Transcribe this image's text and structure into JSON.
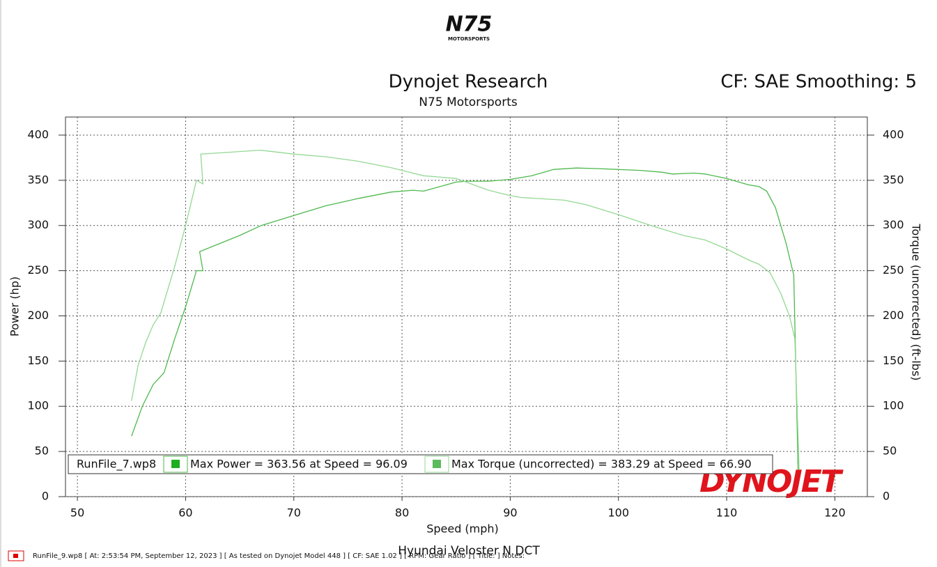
{
  "chart_data": {
    "type": "line",
    "logo": {
      "main": "N75",
      "sub": "MOTORSPORTS"
    },
    "title": "Dynojet Research",
    "subtitle": "N75 Motorsports",
    "settings_label": "CF: SAE Smoothing: 5",
    "x_label": "Speed (mph)",
    "y_label": "Power (hp)",
    "y2_label": "Torque (uncorrected) (ft-lbs)",
    "vehicle": "Hyundai Veloster N DCT",
    "brand": "DYNOJET",
    "legend_title": "RunFile_7.wp8",
    "footer": "RunFile_9.wp8 [ At: 2:53:54 PM, September 12, 2023 ] [ As tested on Dynojet Model 448 ] [ CF: SAE 1.02 ] [ RPM: Gear Ratio ] [ Title: ] Notes:",
    "xlim": [
      48.9,
      123
    ],
    "xticks": [
      50,
      60,
      70,
      80,
      90,
      100,
      110,
      120
    ],
    "ylim": [
      0,
      420
    ],
    "yticks": [
      0,
      50,
      100,
      150,
      200,
      250,
      300,
      350,
      400
    ],
    "y2lim": [
      0,
      420
    ],
    "y2ticks": [
      0,
      50,
      100,
      150,
      200,
      250,
      300,
      350,
      400
    ],
    "grid": true,
    "series": [
      {
        "name": "Max Power = 363.56 at Speed = 96.09",
        "color": "#4cb84c",
        "legend_color": "#1fae1f",
        "x": [
          55,
          56,
          57,
          58,
          59,
          60,
          61,
          61.6,
          61.3,
          65,
          67,
          70,
          73,
          76,
          79,
          81,
          82,
          83.5,
          85,
          86,
          88,
          90,
          92,
          94,
          96.09,
          98,
          100,
          102,
          104,
          105,
          107,
          108,
          110,
          112,
          113,
          113.7,
          114.5,
          115.5,
          116.2,
          116.6
        ],
        "values": [
          67,
          100,
          124,
          137,
          175,
          210,
          250,
          250,
          271,
          289,
          300,
          311,
          322,
          330,
          337,
          339,
          338,
          343,
          348,
          349,
          349,
          351,
          355,
          362,
          363.56,
          363,
          362,
          361,
          359,
          357,
          358,
          357,
          352,
          345,
          343,
          338,
          320,
          280,
          245,
          30
        ]
      },
      {
        "name": "Max Torque (uncorrected) = 383.29 at Speed = 66.90",
        "color": "#93d893",
        "legend_color": "#5cbb5c",
        "axis": "y2",
        "x": [
          55,
          55.6,
          56.3,
          57,
          57.7,
          59,
          60,
          61,
          61.6,
          61.4,
          64,
          66.9,
          70,
          73,
          76,
          79,
          81,
          82,
          85,
          88,
          90,
          91,
          95,
          97,
          100,
          103,
          106,
          108,
          110,
          112,
          113,
          114,
          115,
          115.8,
          116.3,
          116.7
        ],
        "values": [
          106,
          145,
          170,
          190,
          203,
          255,
          300,
          350,
          346,
          379,
          381,
          383.29,
          379,
          376,
          371,
          364,
          358,
          355,
          352,
          339,
          333,
          331,
          328,
          323,
          312,
          300,
          289,
          284,
          274,
          262,
          257,
          248,
          225,
          200,
          175,
          30
        ]
      }
    ]
  }
}
